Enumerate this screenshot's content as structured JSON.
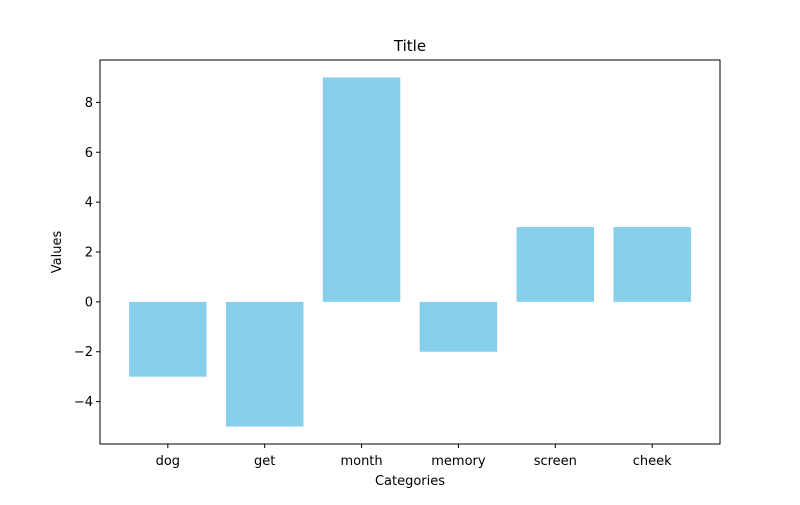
{
  "chart_data": {
    "type": "bar",
    "title": "Title",
    "xlabel": "Categories",
    "ylabel": "Values",
    "categories": [
      "dog",
      "get",
      "month",
      "memory",
      "screen",
      "cheek"
    ],
    "values": [
      -3,
      -5,
      9,
      -2,
      3,
      3
    ],
    "ylim": [
      -5.7,
      9.7
    ],
    "yticks": [
      -4,
      -2,
      0,
      2,
      4,
      6,
      8
    ],
    "ytick_labels": [
      "−4",
      "−2",
      "0",
      "2",
      "4",
      "6",
      "8"
    ],
    "grid": false,
    "legend": "none",
    "bar_color": "#87ceeb"
  }
}
